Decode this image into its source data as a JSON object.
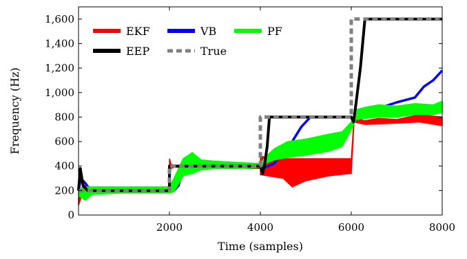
{
  "chart_data": {
    "type": "line",
    "title": "",
    "xlabel": "Time (samples)",
    "ylabel": "Frequency (Hz)",
    "xlim": [
      0,
      8000
    ],
    "ylim": [
      0,
      1700
    ],
    "grid": false,
    "legend_position": "top-left",
    "xticks": [
      2000,
      4000,
      6000,
      8000
    ],
    "xtick_labels": [
      "2000",
      "4000",
      "6000",
      "8000"
    ],
    "yticks": [
      0,
      200,
      400,
      600,
      800,
      1000,
      1200,
      1400,
      1600
    ],
    "ytick_labels": [
      "0",
      "200",
      "400",
      "600",
      "800",
      "1,000",
      "1,200",
      "1,400",
      "1,600"
    ],
    "series": [
      {
        "name": "EKF",
        "color": "#ff0000",
        "style": "band",
        "upper": [
          [
            0,
            140
          ],
          [
            100,
            250
          ],
          [
            300,
            210
          ],
          [
            2000,
            210
          ],
          [
            2000,
            460
          ],
          [
            2030,
            420
          ],
          [
            2100,
            400
          ],
          [
            4000,
            400
          ],
          [
            4000,
            480
          ],
          [
            4200,
            470
          ],
          [
            4500,
            460
          ],
          [
            6000,
            460
          ],
          [
            6060,
            800
          ],
          [
            6300,
            770
          ],
          [
            6600,
            790
          ],
          [
            7000,
            780
          ],
          [
            7500,
            820
          ],
          [
            8000,
            800
          ]
        ],
        "lower": [
          [
            0,
            80
          ],
          [
            100,
            190
          ],
          [
            300,
            190
          ],
          [
            2000,
            190
          ],
          [
            2030,
            380
          ],
          [
            2100,
            390
          ],
          [
            4000,
            380
          ],
          [
            4000,
            330
          ],
          [
            4500,
            300
          ],
          [
            4700,
            230
          ],
          [
            5000,
            280
          ],
          [
            5500,
            320
          ],
          [
            6000,
            340
          ],
          [
            6060,
            760
          ],
          [
            6300,
            740
          ],
          [
            7000,
            750
          ],
          [
            7500,
            760
          ],
          [
            8000,
            730
          ]
        ]
      },
      {
        "name": "VB",
        "color": "#0000ff",
        "style": "line",
        "points": [
          [
            0,
            200
          ],
          [
            50,
            300
          ],
          [
            150,
            260
          ],
          [
            250,
            210
          ],
          [
            2000,
            210
          ],
          [
            2100,
            200
          ],
          [
            2200,
            240
          ],
          [
            2300,
            400
          ],
          [
            4000,
            400
          ],
          [
            4100,
            390
          ],
          [
            4300,
            420
          ],
          [
            4500,
            520
          ],
          [
            4700,
            600
          ],
          [
            4900,
            720
          ],
          [
            5100,
            800
          ],
          [
            6000,
            800
          ],
          [
            6050,
            780
          ],
          [
            6200,
            800
          ],
          [
            6500,
            860
          ],
          [
            7000,
            920
          ],
          [
            7400,
            960
          ],
          [
            7600,
            1050
          ],
          [
            7800,
            1100
          ],
          [
            8000,
            1180
          ]
        ]
      },
      {
        "name": "PF",
        "color": "#00ff00",
        "style": "band",
        "upper": [
          [
            0,
            210
          ],
          [
            150,
            230
          ],
          [
            300,
            230
          ],
          [
            1000,
            230
          ],
          [
            2000,
            230
          ],
          [
            2100,
            300
          ],
          [
            2300,
            460
          ],
          [
            2500,
            510
          ],
          [
            2700,
            450
          ],
          [
            3000,
            440
          ],
          [
            3500,
            430
          ],
          [
            4000,
            420
          ],
          [
            4100,
            470
          ],
          [
            4300,
            540
          ],
          [
            4600,
            600
          ],
          [
            5000,
            620
          ],
          [
            5500,
            660
          ],
          [
            5800,
            680
          ],
          [
            6000,
            760
          ],
          [
            6100,
            860
          ],
          [
            6300,
            880
          ],
          [
            6600,
            900
          ],
          [
            7000,
            890
          ],
          [
            7400,
            910
          ],
          [
            7800,
            900
          ],
          [
            8000,
            930
          ]
        ],
        "lower": [
          [
            0,
            160
          ],
          [
            150,
            120
          ],
          [
            300,
            170
          ],
          [
            1000,
            180
          ],
          [
            2000,
            180
          ],
          [
            2100,
            190
          ],
          [
            2300,
            320
          ],
          [
            2500,
            340
          ],
          [
            2700,
            370
          ],
          [
            3000,
            380
          ],
          [
            3500,
            380
          ],
          [
            4000,
            390
          ],
          [
            4100,
            420
          ],
          [
            4300,
            450
          ],
          [
            4600,
            470
          ],
          [
            5000,
            490
          ],
          [
            5500,
            520
          ],
          [
            5800,
            560
          ],
          [
            6000,
            700
          ],
          [
            6100,
            780
          ],
          [
            6300,
            790
          ],
          [
            6600,
            800
          ],
          [
            7000,
            800
          ],
          [
            7400,
            820
          ],
          [
            7800,
            820
          ],
          [
            8000,
            840
          ]
        ]
      },
      {
        "name": "EEP",
        "color": "#000000",
        "style": "line",
        "points": [
          [
            0,
            200
          ],
          [
            40,
            380
          ],
          [
            100,
            240
          ],
          [
            200,
            200
          ],
          [
            2000,
            200
          ],
          [
            2000,
            400
          ],
          [
            4000,
            400
          ],
          [
            4050,
            340
          ],
          [
            4100,
            430
          ],
          [
            4150,
            560
          ],
          [
            4200,
            800
          ],
          [
            6000,
            800
          ],
          [
            6050,
            760
          ],
          [
            6100,
            900
          ],
          [
            6200,
            1200
          ],
          [
            6300,
            1600
          ],
          [
            8000,
            1600
          ]
        ]
      },
      {
        "name": "True",
        "color": "#808080",
        "style": "dashed",
        "points": [
          [
            0,
            200
          ],
          [
            2000,
            200
          ],
          [
            2000,
            400
          ],
          [
            4000,
            400
          ],
          [
            4000,
            800
          ],
          [
            6000,
            800
          ],
          [
            6000,
            1600
          ],
          [
            8000,
            1600
          ]
        ]
      }
    ]
  }
}
